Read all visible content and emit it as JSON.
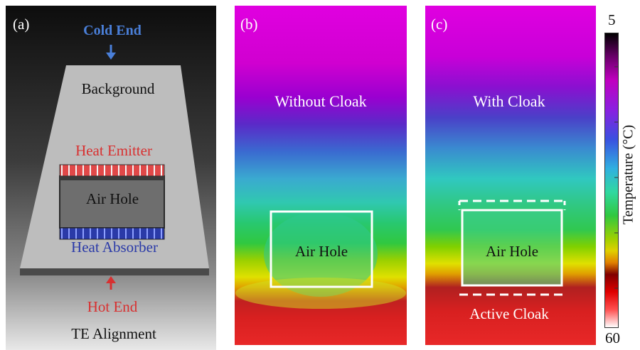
{
  "panel_a": {
    "label": "(a)",
    "cold_end": "Cold End",
    "background": "Background",
    "heat_emitter": "Heat Emitter",
    "air_hole": "Air Hole",
    "heat_absorber": "Heat Absorber",
    "hot_end": "Hot End",
    "caption": "TE Alignment"
  },
  "panel_b": {
    "label": "(b)",
    "title": "Without Cloak",
    "air_hole": "Air Hole"
  },
  "panel_c": {
    "label": "(c)",
    "title": "With Cloak",
    "air_hole": "Air Hole",
    "cloak": "Active Cloak"
  },
  "colorbar": {
    "title": "Temperature (°C)",
    "max": "5",
    "min": "60"
  },
  "colors": {
    "cold_end": "#4a7fd8",
    "hot_end": "#d83030",
    "heat_emitter": "#e04040",
    "heat_absorber": "#3040b0"
  }
}
